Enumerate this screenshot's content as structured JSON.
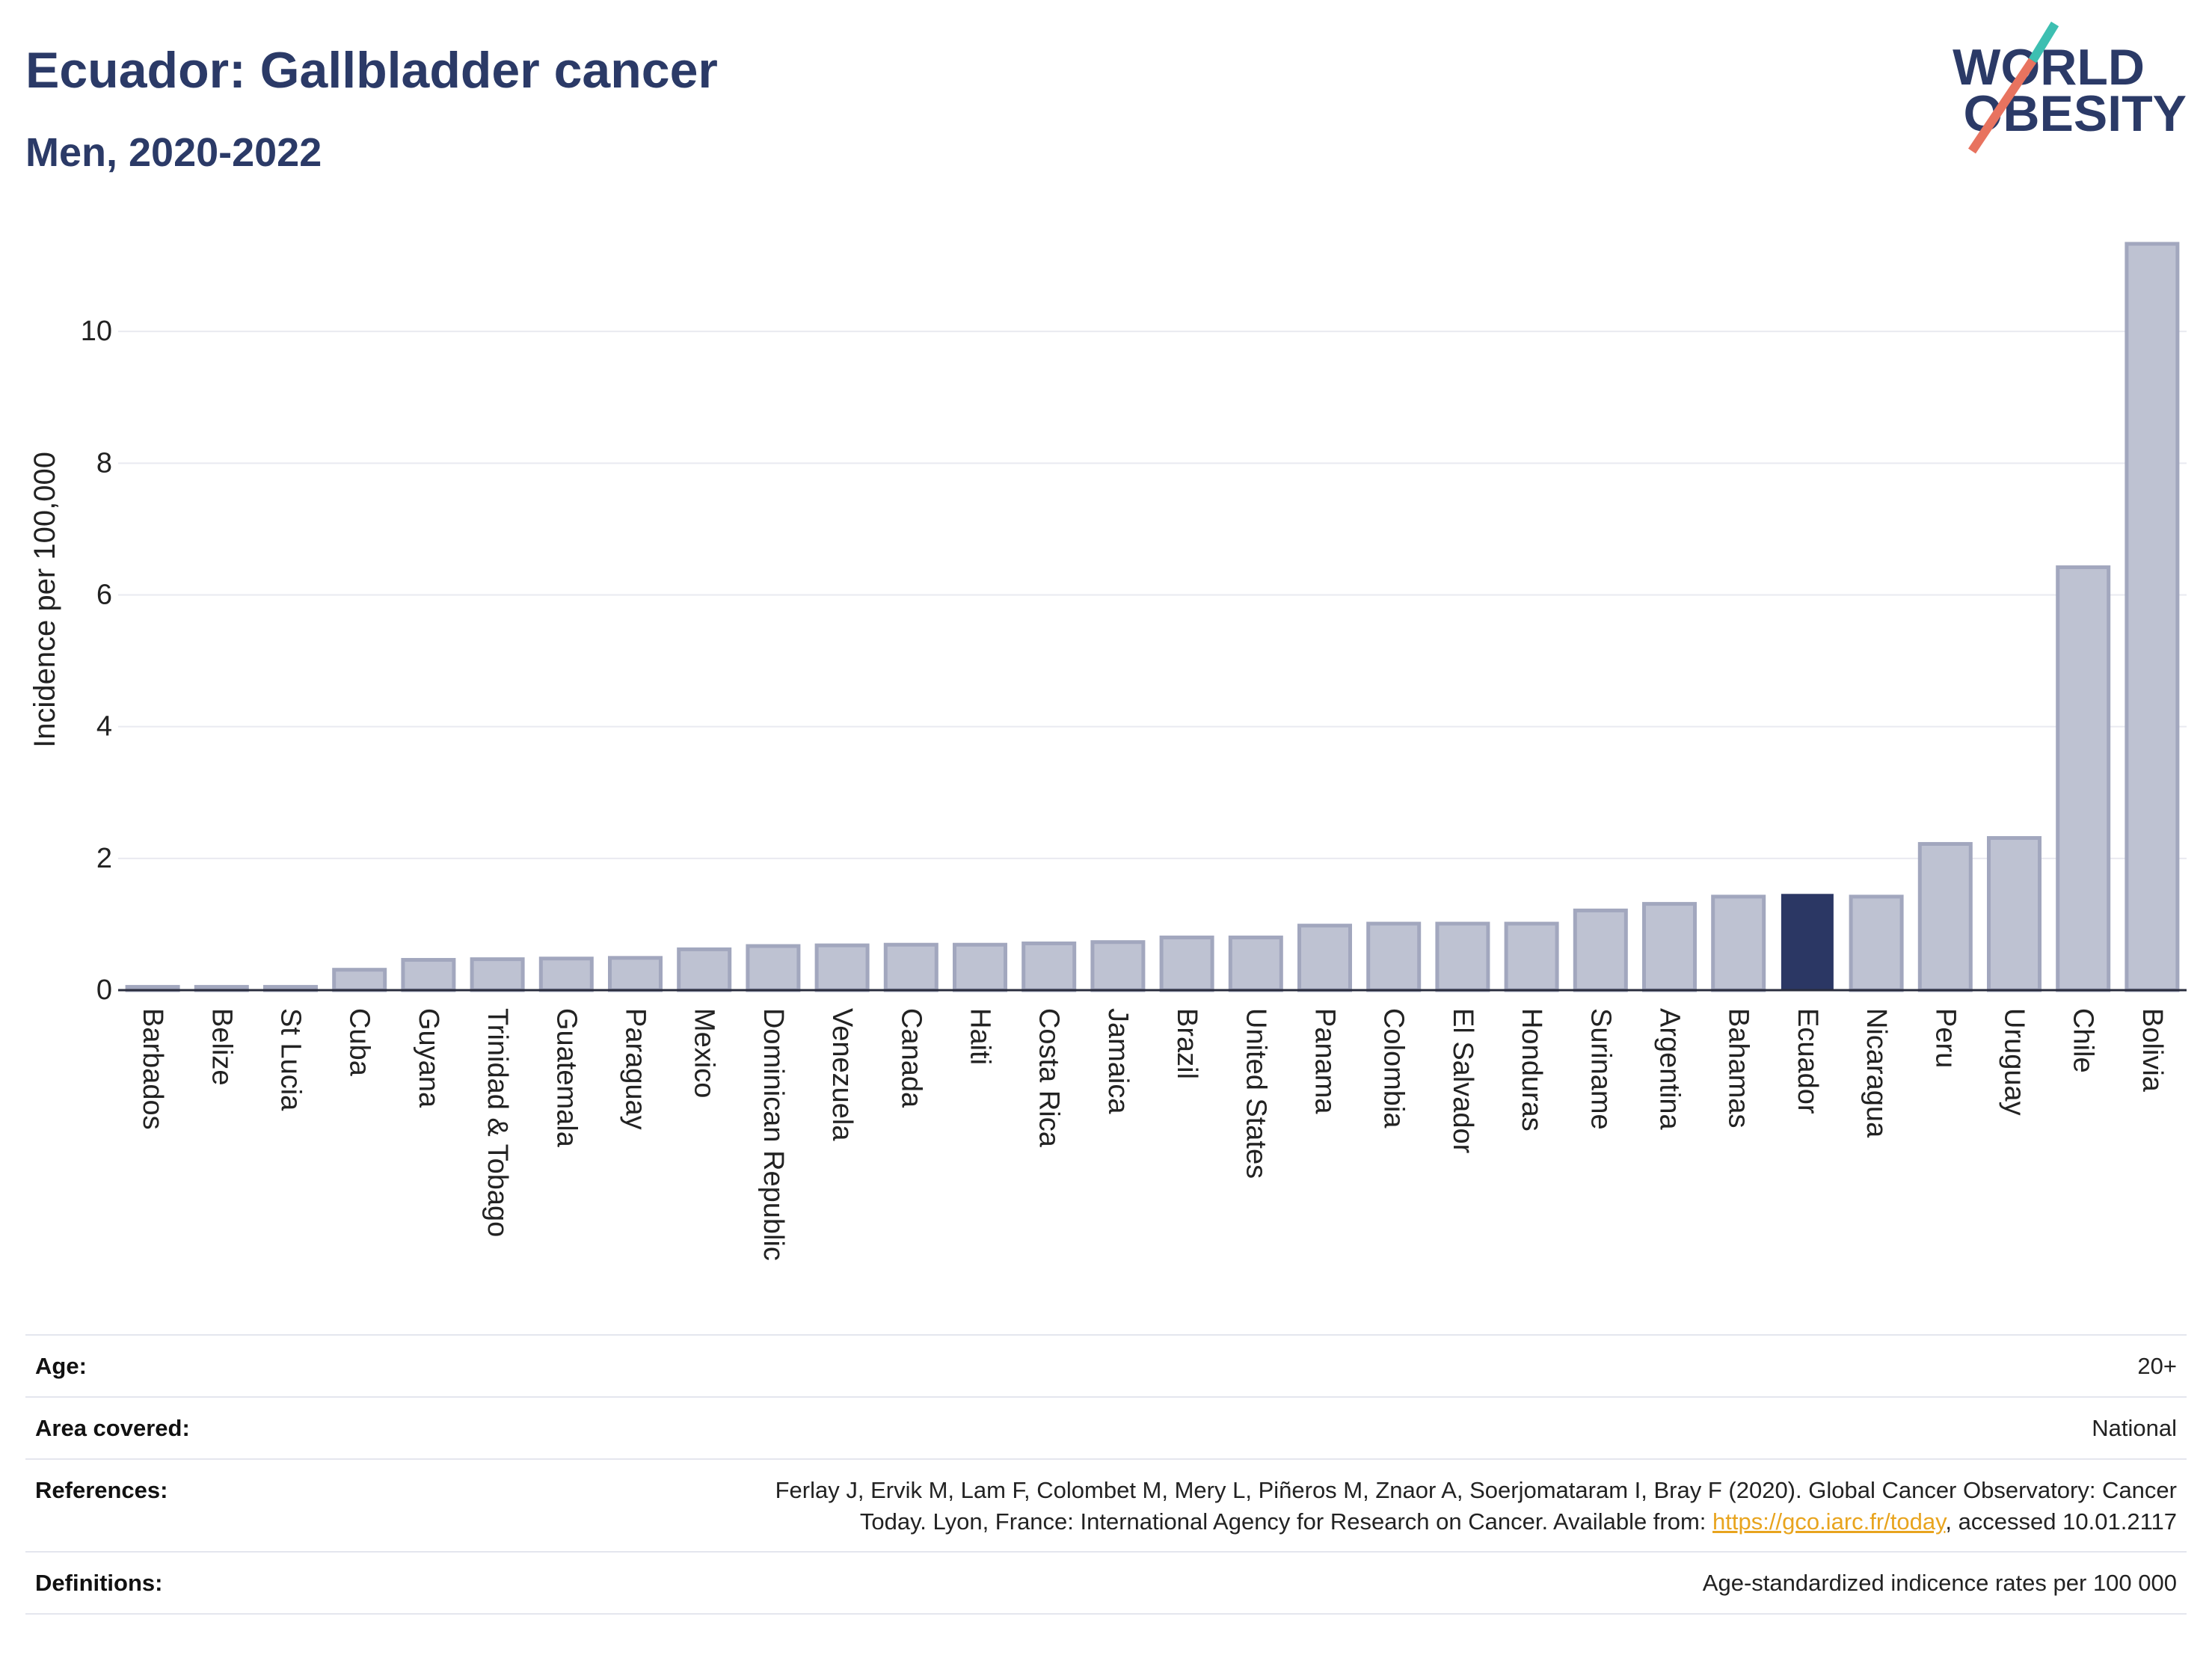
{
  "chart_data": {
    "type": "bar",
    "title": "Ecuador: Gallbladder cancer",
    "subtitle": "Men, 2020-2022",
    "ylabel": "Incidence per 100,000",
    "categories": [
      "Barbados",
      "Belize",
      "St Lucia",
      "Cuba",
      "Guyana",
      "Trinidad & Tobago",
      "Guatemala",
      "Paraguay",
      "Mexico",
      "Dominican Republic",
      "Venezuela",
      "Canada",
      "Haiti",
      "Costa Rica",
      "Jamaica",
      "Brazil",
      "United States",
      "Panama",
      "Colombia",
      "El Salvador",
      "Honduras",
      "Suriname",
      "Argentina",
      "Bahamas",
      "Ecuador",
      "Nicaragua",
      "Peru",
      "Uruguay",
      "Chile",
      "Bolivia"
    ],
    "values": [
      0.05,
      0.05,
      0.05,
      0.31,
      0.46,
      0.47,
      0.48,
      0.49,
      0.62,
      0.67,
      0.68,
      0.69,
      0.69,
      0.71,
      0.73,
      0.8,
      0.8,
      0.98,
      1.01,
      1.01,
      1.01,
      1.21,
      1.31,
      1.42,
      1.45,
      1.42,
      2.22,
      2.31,
      6.42,
      11.33
    ],
    "highlight": "Ecuador",
    "yticks": [
      0,
      2,
      4,
      6,
      8,
      10
    ],
    "ylim": [
      0,
      12
    ],
    "grid": true
  },
  "logo": {
    "line1": "WORLD",
    "line2": "OBESITY"
  },
  "info": {
    "age": {
      "label": "Age:",
      "value": "20+"
    },
    "area": {
      "label": "Area covered:",
      "value": "National"
    },
    "references": {
      "label": "References:",
      "line1": "Ferlay J, Ervik M, Lam F, Colombet M, Mery L, Piñeros M, Znaor A, Soerjomataram I, Bray F (2020). Global Cancer Observatory: Cancer",
      "line2_before_link": "Today. Lyon, France: International Agency for Research on Cancer. Available from: ",
      "link": "https://gco.iarc.fr/today",
      "line2_after_link": ", accessed 10.01.2117"
    },
    "definitions": {
      "label": "Definitions:",
      "value": "Age-standardized indicence rates per 100 000"
    }
  },
  "colors": {
    "title": "#2b3a67",
    "bar": "#bec2d2",
    "bar_stroke": "#a2a7be",
    "highlight": "#2b3764",
    "axis": "#2a2d3e",
    "grid": "#e9eaf0",
    "link": "#e8a41e",
    "logo_teal": "#3dbfb1",
    "logo_coral": "#e8735f"
  }
}
